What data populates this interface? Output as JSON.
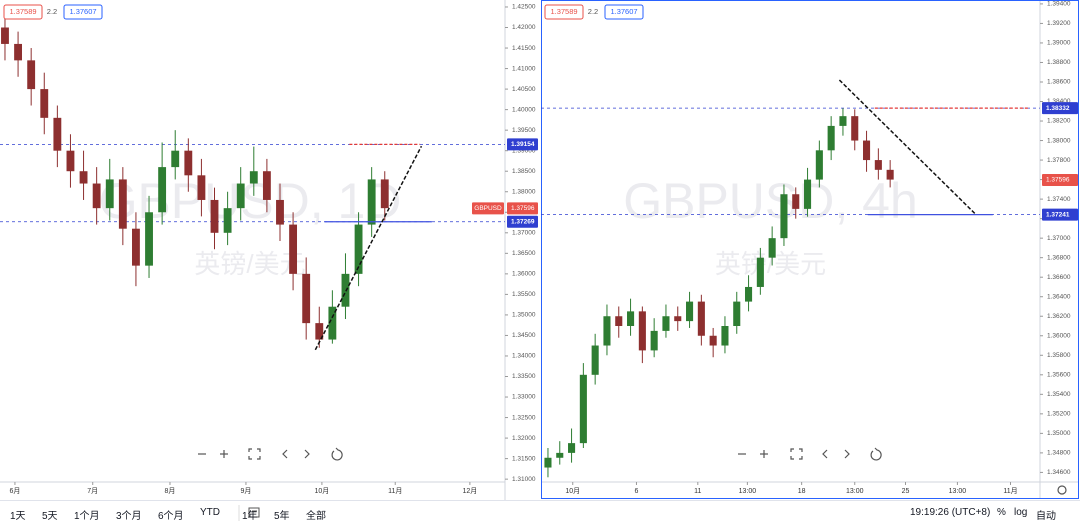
{
  "chart_data": [
    {
      "type": "candlestick",
      "title": "GBPUSD, 1D",
      "subtitle": "英镑/美元",
      "header": {
        "bid": 1.37589,
        "spread": 2.2,
        "ask": 1.37607
      },
      "up_color": "#2e7d32",
      "down_color": "#8d2f2f",
      "open": [
        1.42,
        1.416,
        1.412,
        1.405,
        1.398,
        1.39,
        1.385,
        1.382,
        1.376,
        1.383,
        1.371,
        1.362,
        1.375,
        1.386,
        1.39,
        1.384,
        1.378,
        1.37,
        1.376,
        1.382,
        1.385,
        1.378,
        1.372,
        1.36,
        1.348,
        1.344,
        1.352,
        1.36,
        1.372,
        1.383
      ],
      "high": [
        1.423,
        1.419,
        1.415,
        1.409,
        1.401,
        1.394,
        1.39,
        1.386,
        1.388,
        1.386,
        1.375,
        1.379,
        1.392,
        1.395,
        1.393,
        1.388,
        1.381,
        1.38,
        1.386,
        1.391,
        1.388,
        1.382,
        1.375,
        1.364,
        1.352,
        1.356,
        1.365,
        1.375,
        1.386,
        1.385
      ],
      "low": [
        1.412,
        1.408,
        1.401,
        1.394,
        1.386,
        1.381,
        1.378,
        1.372,
        1.373,
        1.367,
        1.357,
        1.359,
        1.372,
        1.383,
        1.38,
        1.374,
        1.366,
        1.367,
        1.373,
        1.379,
        1.375,
        1.368,
        1.356,
        1.344,
        1.342,
        1.343,
        1.349,
        1.357,
        1.369,
        1.373
      ],
      "close": [
        1.416,
        1.412,
        1.405,
        1.398,
        1.39,
        1.385,
        1.382,
        1.376,
        1.383,
        1.371,
        1.362,
        1.375,
        1.386,
        1.39,
        1.384,
        1.378,
        1.37,
        1.376,
        1.382,
        1.385,
        1.378,
        1.372,
        1.36,
        1.348,
        1.344,
        1.352,
        1.36,
        1.372,
        1.383,
        1.376
      ],
      "xlim": [
        -0.38,
        37.8
      ],
      "xticks": [
        {
          "value": 0.76,
          "label": "6月"
        },
        {
          "value": 6.7,
          "label": "7月"
        },
        {
          "value": 12.6,
          "label": "8月"
        },
        {
          "value": 18.4,
          "label": "9月"
        },
        {
          "value": 24.2,
          "label": "10月"
        },
        {
          "value": 29.8,
          "label": "11月"
        },
        {
          "value": 35.5,
          "label": "12月"
        }
      ],
      "ylim": [
        1.3076,
        1.4267
      ],
      "yticks": [
        {
          "value": 1.31,
          "label": "1.31000"
        },
        {
          "value": 1.315,
          "label": "1.31500"
        },
        {
          "value": 1.32,
          "label": "1.32000"
        },
        {
          "value": 1.325,
          "label": "1.32500"
        },
        {
          "value": 1.33,
          "label": "1.33000"
        },
        {
          "value": 1.335,
          "label": "1.33500"
        },
        {
          "value": 1.34,
          "label": "1.34000"
        },
        {
          "value": 1.345,
          "label": "1.34500"
        },
        {
          "value": 1.35,
          "label": "1.35000"
        },
        {
          "value": 1.355,
          "label": "1.35500"
        },
        {
          "value": 1.36,
          "label": "1.36000"
        },
        {
          "value": 1.365,
          "label": "1.36500"
        },
        {
          "value": 1.37,
          "label": "1.37000"
        },
        {
          "value": 1.375,
          "label": "1.37500"
        },
        {
          "value": 1.38,
          "label": "1.38000"
        },
        {
          "value": 1.385,
          "label": "1.38500"
        },
        {
          "value": 1.39,
          "label": "1.39000"
        },
        {
          "value": 1.395,
          "label": "1.39500"
        },
        {
          "value": 1.4,
          "label": "1.40000"
        },
        {
          "value": 1.405,
          "label": "1.40500"
        },
        {
          "value": 1.41,
          "label": "1.41000"
        },
        {
          "value": 1.415,
          "label": "1.41500"
        },
        {
          "value": 1.42,
          "label": "1.42000"
        },
        {
          "value": 1.425,
          "label": "1.42500"
        }
      ],
      "levels": [
        {
          "value": 1.39154,
          "color": "#2f3fd0"
        },
        {
          "value": 1.37269,
          "color": "#2f3fd0"
        }
      ],
      "price": {
        "value": 1.37596,
        "color": "#e8524a",
        "symbol": "GBPUSD"
      },
      "segments": [
        {
          "x": [
            26.3,
            31.7
          ],
          "y": 1.39154,
          "color": "#e53935",
          "dash": true
        },
        {
          "x": [
            24.4,
            32.6
          ],
          "y": 1.37269,
          "color": "#3f51e0",
          "dash": false
        }
      ],
      "trendline": {
        "x": [
          23.7,
          31.8
        ],
        "y": [
          1.3415,
          1.3911
        ],
        "color": "#111111"
      }
    },
    {
      "type": "candlestick",
      "title": "GBPUSD, 4h",
      "subtitle": "英镑/美元",
      "header": {
        "bid": 1.37589,
        "spread": 2.2,
        "ask": 1.37607
      },
      "up_color": "#2e7d32",
      "down_color": "#8d2f2f",
      "open": [
        1.3465,
        1.3475,
        1.348,
        1.349,
        1.356,
        1.359,
        1.362,
        1.361,
        1.3625,
        1.3585,
        1.3605,
        1.362,
        1.3615,
        1.3635,
        1.36,
        1.359,
        1.361,
        1.3635,
        1.365,
        1.368,
        1.37,
        1.3745,
        1.373,
        1.376,
        1.379,
        1.3815,
        1.3825,
        1.38,
        1.378,
        1.377
      ],
      "high": [
        1.3485,
        1.3492,
        1.3505,
        1.3572,
        1.3602,
        1.3632,
        1.363,
        1.3638,
        1.363,
        1.3618,
        1.3632,
        1.363,
        1.3645,
        1.3642,
        1.3608,
        1.362,
        1.3645,
        1.3662,
        1.369,
        1.3712,
        1.3755,
        1.3752,
        1.3772,
        1.38,
        1.3825,
        1.3833,
        1.3832,
        1.381,
        1.3792,
        1.378
      ],
      "low": [
        1.3455,
        1.3468,
        1.347,
        1.3485,
        1.355,
        1.358,
        1.3598,
        1.36,
        1.3572,
        1.3578,
        1.3598,
        1.3605,
        1.3608,
        1.359,
        1.3578,
        1.3582,
        1.3602,
        1.3625,
        1.3642,
        1.3672,
        1.3692,
        1.372,
        1.3722,
        1.3752,
        1.378,
        1.3805,
        1.379,
        1.3768,
        1.376,
        1.3752
      ],
      "close": [
        1.3475,
        1.348,
        1.349,
        1.356,
        1.359,
        1.362,
        1.361,
        1.3625,
        1.3585,
        1.3605,
        1.362,
        1.3615,
        1.3635,
        1.36,
        1.359,
        1.361,
        1.3635,
        1.365,
        1.368,
        1.37,
        1.3745,
        1.373,
        1.376,
        1.379,
        1.3815,
        1.3825,
        1.38,
        1.378,
        1.377,
        1.376
      ],
      "xlim": [
        -0.59,
        41.7
      ],
      "xticks": [
        {
          "value": 2.1,
          "label": "10月"
        },
        {
          "value": 7.5,
          "label": "6"
        },
        {
          "value": 12.7,
          "label": "11"
        },
        {
          "value": 16.9,
          "label": "13:00"
        },
        {
          "value": 21.5,
          "label": "18"
        },
        {
          "value": 26.0,
          "label": "13:00"
        },
        {
          "value": 30.3,
          "label": "25"
        },
        {
          "value": 34.7,
          "label": "13:00"
        },
        {
          "value": 39.2,
          "label": "11月"
        }
      ],
      "ylim": [
        1.3443,
        1.3944
      ],
      "yticks": [
        {
          "value": 1.346,
          "label": "1.34600"
        },
        {
          "value": 1.348,
          "label": "1.34800"
        },
        {
          "value": 1.35,
          "label": "1.35000"
        },
        {
          "value": 1.352,
          "label": "1.35200"
        },
        {
          "value": 1.354,
          "label": "1.35400"
        },
        {
          "value": 1.356,
          "label": "1.35600"
        },
        {
          "value": 1.358,
          "label": "1.35800"
        },
        {
          "value": 1.36,
          "label": "1.36000"
        },
        {
          "value": 1.362,
          "label": "1.36200"
        },
        {
          "value": 1.364,
          "label": "1.36400"
        },
        {
          "value": 1.366,
          "label": "1.36600"
        },
        {
          "value": 1.368,
          "label": "1.36800"
        },
        {
          "value": 1.37,
          "label": "1.37000"
        },
        {
          "value": 1.372,
          "label": "1.37200"
        },
        {
          "value": 1.374,
          "label": "1.37400"
        },
        {
          "value": 1.376,
          "label": "1.37600"
        },
        {
          "value": 1.378,
          "label": "1.37800"
        },
        {
          "value": 1.38,
          "label": "1.38000"
        },
        {
          "value": 1.382,
          "label": "1.38200"
        },
        {
          "value": 1.384,
          "label": "1.38400"
        },
        {
          "value": 1.386,
          "label": "1.38600"
        },
        {
          "value": 1.388,
          "label": "1.38800"
        },
        {
          "value": 1.39,
          "label": "1.39000"
        },
        {
          "value": 1.392,
          "label": "1.39200"
        },
        {
          "value": 1.394,
          "label": "1.39400"
        }
      ],
      "levels": [
        {
          "value": 1.38332,
          "color": "#2f3fd0"
        },
        {
          "value": 1.37241,
          "color": "#2f3fd0"
        }
      ],
      "price": {
        "value": 1.37596,
        "color": "#e8524a"
      },
      "segments": [
        {
          "x": [
            27.7,
            40.7
          ],
          "y": 1.38332,
          "color": "#e53935",
          "dash": true
        },
        {
          "x": [
            27.1,
            37.7
          ],
          "y": 1.37241,
          "color": "#3f51e0",
          "dash": false
        }
      ],
      "trendline": {
        "x": [
          24.7,
          36.2
        ],
        "y": [
          1.3862,
          1.3725
        ],
        "color": "#111111"
      }
    }
  ],
  "toolbar": {
    "ranges": [
      "1天",
      "5天",
      "1个月",
      "3个月",
      "6个月",
      "YTD",
      "1年",
      "5年",
      "全部"
    ],
    "clock": "19:19:26 (UTC+8)",
    "percent": "%",
    "log": "log",
    "auto": "自动"
  }
}
